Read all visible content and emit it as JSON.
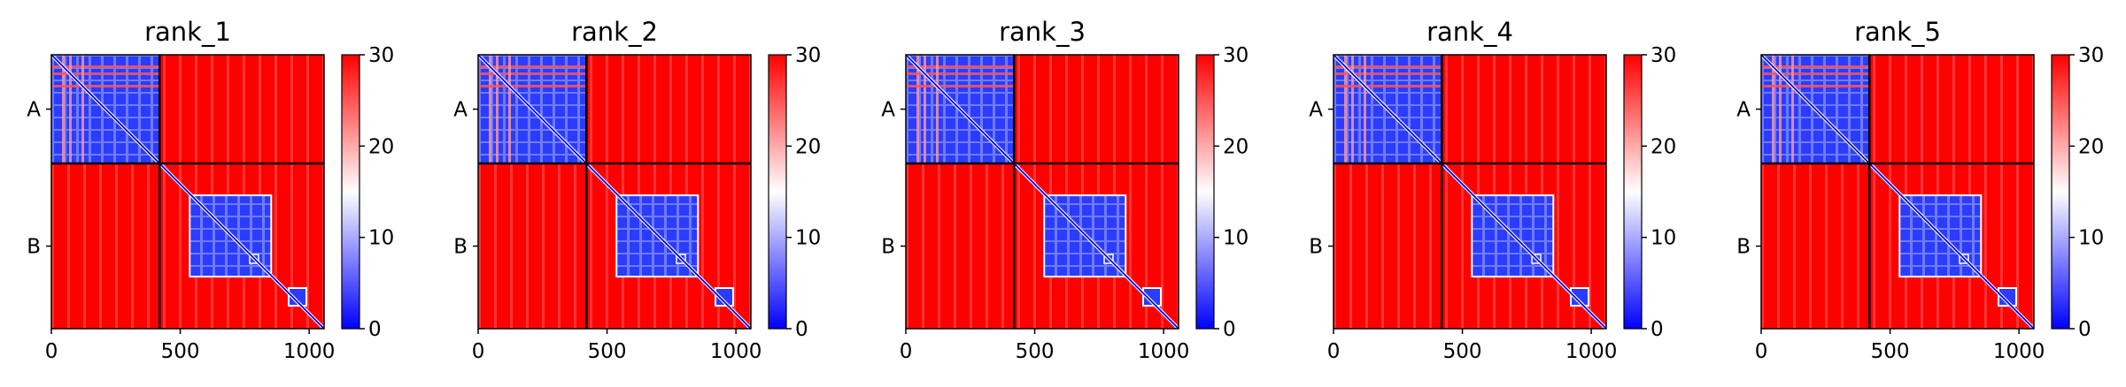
{
  "chart_data": {
    "type": "heatmap",
    "colormap": [
      "#0000ff",
      "#ffffff",
      "#ff0000"
    ],
    "colorbar": {
      "range": [
        0,
        30
      ],
      "ticks": [
        0,
        10,
        20,
        30
      ]
    },
    "x_ticks": [
      0,
      500,
      1000
    ],
    "x_range": [
      0,
      1058
    ],
    "boundary": 420,
    "y_blocks": [
      "A",
      "B"
    ],
    "panels": [
      {
        "title": "rank_1"
      },
      {
        "title": "rank_2"
      },
      {
        "title": "rank_3"
      },
      {
        "title": "rank_4"
      },
      {
        "title": "rank_5"
      }
    ]
  }
}
